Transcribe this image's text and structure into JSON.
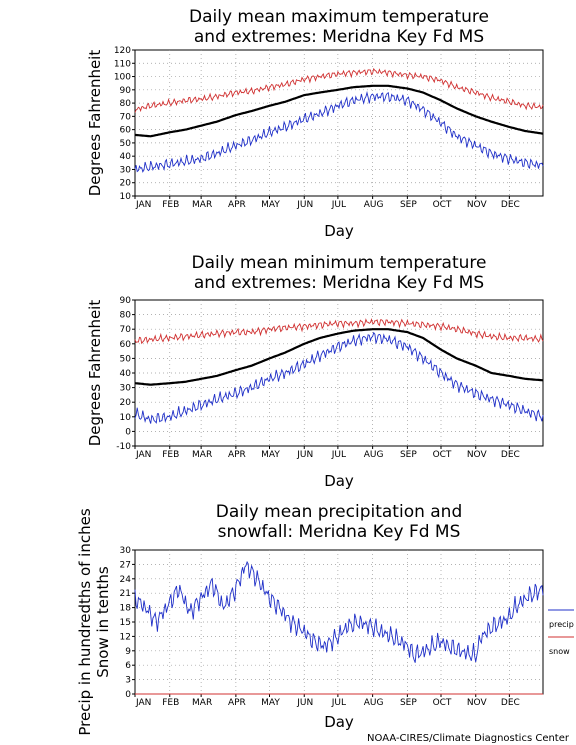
{
  "credit": "NOAA-CIRES/Climate Diagnostics Center",
  "chart_data": [
    {
      "type": "line",
      "title_lines": [
        "Daily mean maximum temperature",
        "and extremes: Meridna Key Fd MS"
      ],
      "xlabel": "Day",
      "ylabel": "Degrees Fahrenheit",
      "ylim": [
        10,
        120
      ],
      "yticks": [
        "10",
        "20",
        "30",
        "40",
        "50",
        "60",
        "70",
        "80",
        "90",
        "100",
        "110",
        "120"
      ],
      "ytick_values": [
        10,
        20,
        30,
        40,
        50,
        60,
        70,
        80,
        90,
        100,
        110,
        120
      ],
      "months": [
        "JAN",
        "FEB",
        "MAR",
        "APR",
        "MAY",
        "JUN",
        "JUL",
        "AUG",
        "SEP",
        "OCT",
        "NOV",
        "DEC"
      ],
      "grid": true,
      "series": [
        {
          "role": "mean",
          "color": "#000000",
          "x": [
            1,
            15,
            32,
            46,
            60,
            74,
            91,
            105,
            121,
            135,
            152,
            166,
            182,
            196,
            213,
            227,
            244,
            258,
            274,
            288,
            305,
            319,
            335,
            349,
            365
          ],
          "values": [
            56,
            55,
            58,
            60,
            63,
            66,
            71,
            74,
            78,
            81,
            86,
            88,
            90,
            92,
            93,
            93,
            91,
            88,
            82,
            76,
            70,
            66,
            62,
            59,
            57
          ]
        },
        {
          "role": "record high",
          "color": "#d03030",
          "x": [
            1,
            15,
            32,
            46,
            60,
            74,
            91,
            105,
            121,
            135,
            152,
            166,
            182,
            196,
            213,
            227,
            244,
            258,
            274,
            288,
            305,
            319,
            335,
            349,
            365
          ],
          "values": [
            75,
            78,
            80,
            82,
            83,
            85,
            88,
            89,
            92,
            94,
            98,
            100,
            102,
            103,
            104,
            103,
            101,
            100,
            97,
            92,
            88,
            84,
            81,
            78,
            77
          ]
        },
        {
          "role": "record low",
          "color": "#2030c8",
          "x": [
            1,
            15,
            32,
            46,
            60,
            74,
            91,
            105,
            121,
            135,
            152,
            166,
            182,
            196,
            213,
            227,
            244,
            258,
            274,
            288,
            305,
            319,
            335,
            349,
            365
          ],
          "values": [
            30,
            32,
            34,
            36,
            38,
            42,
            48,
            52,
            58,
            62,
            68,
            72,
            78,
            82,
            85,
            85,
            82,
            75,
            65,
            55,
            48,
            42,
            38,
            35,
            33
          ]
        }
      ]
    },
    {
      "type": "line",
      "title_lines": [
        "Daily mean minimum temperature",
        "and extremes: Meridna Key Fd MS"
      ],
      "xlabel": "Day",
      "ylabel": "Degrees Fahrenheit",
      "ylim": [
        -10,
        90
      ],
      "yticks": [
        "-10",
        "0",
        "10",
        "20",
        "30",
        "40",
        "50",
        "60",
        "70",
        "80",
        "90"
      ],
      "ytick_values": [
        -10,
        0,
        10,
        20,
        30,
        40,
        50,
        60,
        70,
        80,
        90
      ],
      "months": [
        "JAN",
        "FEB",
        "MAR",
        "APR",
        "MAY",
        "JUN",
        "JUL",
        "AUG",
        "SEP",
        "OCT",
        "NOV",
        "DEC"
      ],
      "grid": true,
      "series": [
        {
          "role": "mean",
          "color": "#000000",
          "x": [
            1,
            15,
            32,
            46,
            60,
            74,
            91,
            105,
            121,
            135,
            152,
            166,
            182,
            196,
            213,
            227,
            244,
            258,
            274,
            288,
            305,
            319,
            335,
            349,
            365
          ],
          "values": [
            33,
            32,
            33,
            34,
            36,
            38,
            42,
            45,
            50,
            54,
            60,
            64,
            67,
            69,
            70,
            70,
            68,
            64,
            56,
            50,
            45,
            40,
            38,
            36,
            35
          ]
        },
        {
          "role": "record high",
          "color": "#d03030",
          "x": [
            1,
            15,
            32,
            46,
            60,
            74,
            91,
            105,
            121,
            135,
            152,
            166,
            182,
            196,
            213,
            227,
            244,
            258,
            274,
            288,
            305,
            319,
            335,
            349,
            365
          ],
          "values": [
            62,
            63,
            64,
            65,
            66,
            67,
            68,
            68,
            70,
            71,
            72,
            73,
            74,
            74,
            75,
            75,
            74,
            73,
            72,
            70,
            67,
            65,
            64,
            64,
            63
          ]
        },
        {
          "role": "record low",
          "color": "#2030c8",
          "x": [
            1,
            15,
            32,
            46,
            60,
            74,
            91,
            105,
            121,
            135,
            152,
            166,
            182,
            196,
            213,
            227,
            244,
            258,
            274,
            288,
            305,
            319,
            335,
            349,
            365
          ],
          "values": [
            12,
            8,
            10,
            14,
            18,
            22,
            26,
            30,
            36,
            40,
            46,
            52,
            58,
            62,
            65,
            63,
            58,
            50,
            40,
            32,
            26,
            22,
            18,
            14,
            10
          ]
        }
      ]
    },
    {
      "type": "line",
      "title_lines": [
        "Daily mean precipitation and",
        "snowfall: Meridna Key Fd MS"
      ],
      "xlabel": "Day",
      "ylabel_lines": [
        "Precip in hundredths of inches",
        "Snow in tenths"
      ],
      "ylim": [
        0,
        30
      ],
      "yticks": [
        "0",
        "3",
        "6",
        "9",
        "12",
        "15",
        "18",
        "21",
        "24",
        "27",
        "30"
      ],
      "ytick_values": [
        0,
        3,
        6,
        9,
        12,
        15,
        18,
        21,
        24,
        27,
        30
      ],
      "months": [
        "JAN",
        "FEB",
        "MAR",
        "APR",
        "MAY",
        "JUN",
        "JUL",
        "AUG",
        "SEP",
        "OCT",
        "NOV",
        "DEC"
      ],
      "grid": true,
      "legend": "right",
      "series": [
        {
          "name": "precip",
          "color": "#2030c8",
          "x": [
            1,
            10,
            20,
            32,
            40,
            50,
            60,
            70,
            80,
            91,
            100,
            110,
            121,
            130,
            140,
            152,
            160,
            170,
            182,
            190,
            200,
            213,
            220,
            230,
            244,
            250,
            260,
            274,
            280,
            290,
            305,
            310,
            320,
            335,
            340,
            350,
            365
          ],
          "values": [
            20,
            18,
            15,
            19,
            22,
            17,
            20,
            23,
            18,
            22,
            27,
            24,
            20,
            18,
            15,
            13,
            11,
            10,
            12,
            14,
            15,
            14,
            13,
            12,
            10,
            8,
            9,
            11,
            10,
            9,
            8,
            12,
            14,
            16,
            18,
            20,
            22
          ]
        },
        {
          "name": "snow",
          "color": "#d03030",
          "x": [
            1,
            365
          ],
          "values": [
            0,
            0
          ]
        }
      ]
    }
  ]
}
